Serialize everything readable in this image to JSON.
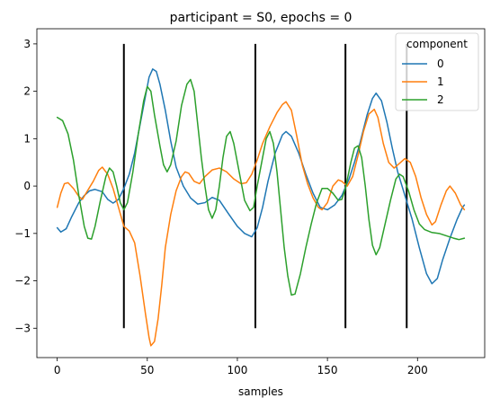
{
  "chart_data": {
    "type": "line",
    "title": "participant = S0, epochs = 0",
    "xlabel": "samples",
    "ylabel": "",
    "xlim": [
      -11.3,
      237.3
    ],
    "ylim": [
      -3.62,
      3.32
    ],
    "xticks": [
      0,
      50,
      100,
      150,
      200
    ],
    "yticks": [
      -3,
      -2,
      -1,
      0,
      1,
      2,
      3
    ],
    "grid": false,
    "legend": {
      "title": "component",
      "placement": "top-right"
    },
    "vlines": {
      "x": [
        37,
        110,
        160,
        194
      ],
      "ymin": -3,
      "ymax": 3,
      "color": "#000000"
    },
    "series": [
      {
        "name": "0",
        "color": "#1f77b4",
        "points": [
          [
            0,
            -0.88
          ],
          [
            2,
            -0.97
          ],
          [
            5,
            -0.9
          ],
          [
            8,
            -0.65
          ],
          [
            12,
            -0.35
          ],
          [
            15,
            -0.2
          ],
          [
            18,
            -0.1
          ],
          [
            21,
            -0.07
          ],
          [
            25,
            -0.12
          ],
          [
            28,
            -0.28
          ],
          [
            31,
            -0.36
          ],
          [
            34,
            -0.28
          ],
          [
            37,
            -0.05
          ],
          [
            40,
            0.25
          ],
          [
            43,
            0.7
          ],
          [
            46,
            1.3
          ],
          [
            49,
            1.9
          ],
          [
            51,
            2.3
          ],
          [
            53,
            2.47
          ],
          [
            55,
            2.42
          ],
          [
            57,
            2.15
          ],
          [
            60,
            1.6
          ],
          [
            63,
            0.95
          ],
          [
            66,
            0.4
          ],
          [
            70,
            0.0
          ],
          [
            74,
            -0.25
          ],
          [
            78,
            -0.38
          ],
          [
            82,
            -0.35
          ],
          [
            86,
            -0.24
          ],
          [
            90,
            -0.3
          ],
          [
            95,
            -0.58
          ],
          [
            100,
            -0.85
          ],
          [
            104,
            -1.0
          ],
          [
            108,
            -1.07
          ],
          [
            111,
            -0.88
          ],
          [
            114,
            -0.45
          ],
          [
            117,
            0.1
          ],
          [
            121,
            0.7
          ],
          [
            125,
            1.08
          ],
          [
            127,
            1.15
          ],
          [
            130,
            1.05
          ],
          [
            134,
            0.7
          ],
          [
            138,
            0.25
          ],
          [
            142,
            -0.15
          ],
          [
            146,
            -0.45
          ],
          [
            150,
            -0.5
          ],
          [
            154,
            -0.4
          ],
          [
            158,
            -0.2
          ],
          [
            162,
            0.15
          ],
          [
            165,
            0.5
          ],
          [
            168,
            0.9
          ],
          [
            172,
            1.5
          ],
          [
            175,
            1.85
          ],
          [
            177,
            1.96
          ],
          [
            180,
            1.8
          ],
          [
            183,
            1.35
          ],
          [
            186,
            0.8
          ],
          [
            189,
            0.3
          ],
          [
            193,
            -0.2
          ],
          [
            197,
            -0.7
          ],
          [
            201,
            -1.3
          ],
          [
            205,
            -1.85
          ],
          [
            208,
            -2.06
          ],
          [
            211,
            -1.95
          ],
          [
            214,
            -1.55
          ],
          [
            218,
            -1.1
          ],
          [
            222,
            -0.7
          ],
          [
            225,
            -0.45
          ],
          [
            226,
            -0.4
          ]
        ]
      },
      {
        "name": "1",
        "color": "#ff7f0e",
        "points": [
          [
            0,
            -0.45
          ],
          [
            2,
            -0.15
          ],
          [
            4,
            0.05
          ],
          [
            6,
            0.07
          ],
          [
            9,
            -0.05
          ],
          [
            12,
            -0.22
          ],
          [
            14,
            -0.28
          ],
          [
            16,
            -0.15
          ],
          [
            20,
            0.1
          ],
          [
            23,
            0.33
          ],
          [
            25,
            0.4
          ],
          [
            28,
            0.25
          ],
          [
            31,
            -0.05
          ],
          [
            34,
            -0.45
          ],
          [
            37,
            -0.85
          ],
          [
            40,
            -0.95
          ],
          [
            43,
            -1.2
          ],
          [
            46,
            -1.9
          ],
          [
            49,
            -2.7
          ],
          [
            51,
            -3.2
          ],
          [
            52,
            -3.37
          ],
          [
            54,
            -3.28
          ],
          [
            56,
            -2.8
          ],
          [
            58,
            -2.1
          ],
          [
            60,
            -1.3
          ],
          [
            63,
            -0.6
          ],
          [
            66,
            -0.1
          ],
          [
            69,
            0.2
          ],
          [
            71,
            0.3
          ],
          [
            73,
            0.27
          ],
          [
            76,
            0.1
          ],
          [
            79,
            0.05
          ],
          [
            82,
            0.2
          ],
          [
            86,
            0.34
          ],
          [
            90,
            0.38
          ],
          [
            94,
            0.3
          ],
          [
            98,
            0.15
          ],
          [
            102,
            0.05
          ],
          [
            105,
            0.07
          ],
          [
            108,
            0.25
          ],
          [
            111,
            0.55
          ],
          [
            114,
            0.9
          ],
          [
            118,
            1.25
          ],
          [
            122,
            1.55
          ],
          [
            125,
            1.72
          ],
          [
            127,
            1.78
          ],
          [
            130,
            1.6
          ],
          [
            133,
            1.05
          ],
          [
            136,
            0.45
          ],
          [
            139,
            0.05
          ],
          [
            142,
            -0.25
          ],
          [
            145,
            -0.45
          ],
          [
            147,
            -0.5
          ],
          [
            150,
            -0.35
          ],
          [
            153,
            0.0
          ],
          [
            156,
            0.13
          ],
          [
            158,
            0.1
          ],
          [
            161,
            0.0
          ],
          [
            164,
            0.2
          ],
          [
            167,
            0.65
          ],
          [
            170,
            1.15
          ],
          [
            173,
            1.52
          ],
          [
            176,
            1.62
          ],
          [
            178,
            1.45
          ],
          [
            181,
            0.9
          ],
          [
            184,
            0.5
          ],
          [
            187,
            0.38
          ],
          [
            190,
            0.48
          ],
          [
            193,
            0.58
          ],
          [
            196,
            0.5
          ],
          [
            199,
            0.2
          ],
          [
            202,
            -0.25
          ],
          [
            205,
            -0.6
          ],
          [
            208,
            -0.82
          ],
          [
            210,
            -0.75
          ],
          [
            213,
            -0.4
          ],
          [
            216,
            -0.1
          ],
          [
            218,
            0.0
          ],
          [
            221,
            -0.15
          ],
          [
            224,
            -0.4
          ],
          [
            226,
            -0.5
          ]
        ]
      },
      {
        "name": "2",
        "color": "#2ca02c",
        "points": [
          [
            0,
            1.45
          ],
          [
            3,
            1.38
          ],
          [
            6,
            1.1
          ],
          [
            9,
            0.55
          ],
          [
            12,
            -0.2
          ],
          [
            15,
            -0.85
          ],
          [
            17,
            -1.1
          ],
          [
            19,
            -1.12
          ],
          [
            21,
            -0.85
          ],
          [
            24,
            -0.3
          ],
          [
            27,
            0.2
          ],
          [
            29,
            0.38
          ],
          [
            31,
            0.3
          ],
          [
            33,
            0.0
          ],
          [
            35,
            -0.35
          ],
          [
            37,
            -0.5
          ],
          [
            39,
            -0.35
          ],
          [
            42,
            0.3
          ],
          [
            45,
            1.1
          ],
          [
            48,
            1.8
          ],
          [
            50,
            2.1
          ],
          [
            52,
            2.0
          ],
          [
            54,
            1.5
          ],
          [
            57,
            0.85
          ],
          [
            59,
            0.45
          ],
          [
            61,
            0.3
          ],
          [
            63,
            0.45
          ],
          [
            66,
            0.95
          ],
          [
            69,
            1.7
          ],
          [
            72,
            2.15
          ],
          [
            74,
            2.25
          ],
          [
            76,
            2.0
          ],
          [
            78,
            1.3
          ],
          [
            80,
            0.6
          ],
          [
            82,
            0.0
          ],
          [
            84,
            -0.5
          ],
          [
            86,
            -0.68
          ],
          [
            88,
            -0.5
          ],
          [
            90,
            0.0
          ],
          [
            92,
            0.6
          ],
          [
            94,
            1.05
          ],
          [
            96,
            1.15
          ],
          [
            98,
            0.9
          ],
          [
            101,
            0.3
          ],
          [
            104,
            -0.3
          ],
          [
            107,
            -0.52
          ],
          [
            109,
            -0.45
          ],
          [
            111,
            0.0
          ],
          [
            114,
            0.6
          ],
          [
            116,
            1.0
          ],
          [
            118,
            1.15
          ],
          [
            120,
            0.9
          ],
          [
            122,
            0.3
          ],
          [
            124,
            -0.5
          ],
          [
            126,
            -1.3
          ],
          [
            128,
            -1.9
          ],
          [
            130,
            -2.3
          ],
          [
            132,
            -2.28
          ],
          [
            135,
            -1.85
          ],
          [
            138,
            -1.3
          ],
          [
            141,
            -0.8
          ],
          [
            144,
            -0.35
          ],
          [
            147,
            -0.05
          ],
          [
            150,
            -0.05
          ],
          [
            153,
            -0.15
          ],
          [
            156,
            -0.3
          ],
          [
            158,
            -0.28
          ],
          [
            160,
            -0.05
          ],
          [
            163,
            0.5
          ],
          [
            165,
            0.8
          ],
          [
            167,
            0.85
          ],
          [
            169,
            0.6
          ],
          [
            171,
            0.0
          ],
          [
            173,
            -0.7
          ],
          [
            175,
            -1.25
          ],
          [
            177,
            -1.45
          ],
          [
            179,
            -1.3
          ],
          [
            182,
            -0.8
          ],
          [
            185,
            -0.3
          ],
          [
            188,
            0.15
          ],
          [
            190,
            0.25
          ],
          [
            192,
            0.2
          ],
          [
            195,
            -0.1
          ],
          [
            198,
            -0.5
          ],
          [
            201,
            -0.8
          ],
          [
            204,
            -0.92
          ],
          [
            208,
            -0.98
          ],
          [
            212,
            -1.0
          ],
          [
            216,
            -1.05
          ],
          [
            220,
            -1.1
          ],
          [
            223,
            -1.13
          ],
          [
            226,
            -1.1
          ]
        ]
      }
    ]
  }
}
